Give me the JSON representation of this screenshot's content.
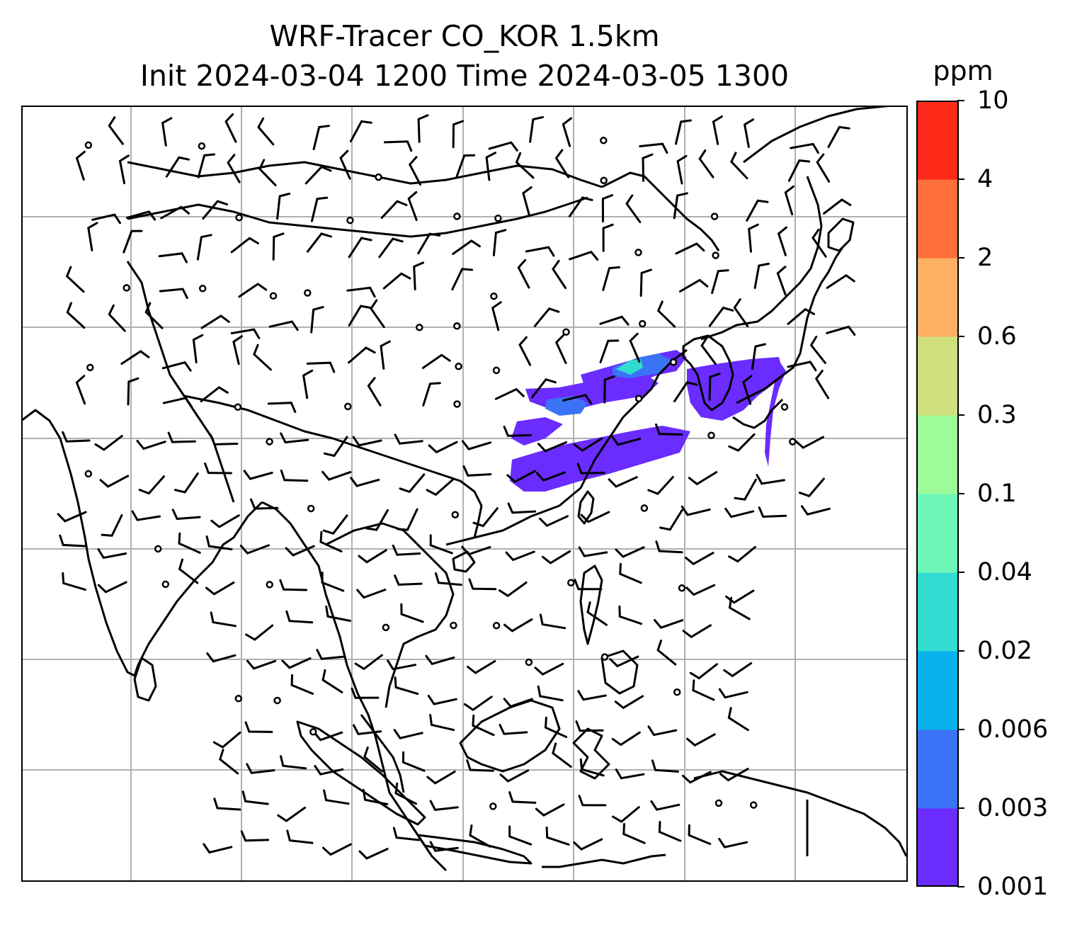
{
  "title": {
    "line1": "WRF-Tracer CO_KOR 1.5km",
    "line2": "Init 2024-03-04 1200 Time 2024-03-05 1300"
  },
  "colorbar": {
    "units": "ppm",
    "levels": [
      "0.001",
      "0.003",
      "0.006",
      "0.02",
      "0.04",
      "0.1",
      "0.3",
      "0.6",
      "2",
      "4",
      "10"
    ],
    "colors": [
      "#6a2cff",
      "#3a73f5",
      "#09b2ec",
      "#30dccf",
      "#6ff7b9",
      "#9dfb98",
      "#d1e07e",
      "#fdb062",
      "#fe6f3a",
      "#fd2a1a"
    ]
  },
  "map": {
    "gridlines": true,
    "coastline_color": "#000000",
    "grid_color": "#b0b0b0",
    "tracer_color_main": "#6a2cff",
    "tracer_color_mid": "#3a73f5",
    "tracer_color_high": "#30dccf"
  }
}
